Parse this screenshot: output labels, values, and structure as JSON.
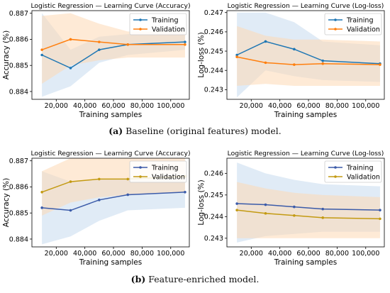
{
  "colors": {
    "baseline_training": "#1f77b4",
    "baseline_validation": "#ff7f0e",
    "enriched_training": "#3b5ba9",
    "enriched_validation": "#c39a12",
    "training_band": "#c6dbef",
    "validation_band": "#fdd8b5",
    "axis": "#000000"
  },
  "captions": [
    {
      "label": "(a)",
      "text": " Baseline (original features) model."
    },
    {
      "label": "(b)",
      "text": " Feature-enriched model."
    }
  ],
  "chart_data": [
    {
      "type": "line",
      "title": "Logistic Regression — Learning Curve (Accuracy)",
      "xlabel": "Training samples",
      "ylabel": "Accuracy (%)",
      "xlim": [
        3000,
        113000
      ],
      "ylim": [
        0.8837,
        0.8871
      ],
      "xticks": [
        20000,
        40000,
        60000,
        80000,
        100000
      ],
      "xtick_labels": [
        "20,000",
        "40,000",
        "60,000",
        "80,000",
        "100,000"
      ],
      "yticks": [
        0.884,
        0.885,
        0.886,
        0.887
      ],
      "ytick_labels": [
        "0.884",
        "0.885",
        "0.886",
        "0.887"
      ],
      "legend": "top-right",
      "grid": false,
      "series": [
        {
          "name": "Training",
          "color": "#1f77b4",
          "band_color": "#c6dbef",
          "x": [
            10000,
            30000,
            50000,
            70000,
            110000
          ],
          "y": [
            0.8854,
            0.8849,
            0.8856,
            0.8858,
            0.8859
          ],
          "lower": [
            0.8838,
            0.8842,
            0.8851,
            0.8854,
            0.8856
          ],
          "upper": [
            0.887,
            0.8856,
            0.8861,
            0.8862,
            0.8862
          ]
        },
        {
          "name": "Validation",
          "color": "#ff7f0e",
          "band_color": "#fdd8b5",
          "x": [
            10000,
            30000,
            50000,
            70000,
            110000
          ],
          "y": [
            0.8856,
            0.886,
            0.8859,
            0.8858,
            0.8858
          ],
          "lower": [
            0.8843,
            0.885,
            0.8852,
            0.8853,
            0.8853
          ],
          "upper": [
            0.8869,
            0.887,
            0.8866,
            0.8863,
            0.8863
          ]
        }
      ]
    },
    {
      "type": "line",
      "title": "Logistic Regression — Learning Curve (Log-loss)",
      "xlabel": "Training samples",
      "ylabel": "Log-loss (%)",
      "xlim": [
        3000,
        113000
      ],
      "ylim": [
        0.2425,
        0.2471
      ],
      "xticks": [
        20000,
        40000,
        60000,
        80000,
        100000
      ],
      "xtick_labels": [
        "20,000",
        "40,000",
        "60,000",
        "80,000",
        "100,000"
      ],
      "yticks": [
        0.243,
        0.244,
        0.245,
        0.246,
        0.247
      ],
      "ytick_labels": [
        "0.243",
        "0.244",
        "0.245",
        "0.246",
        "0.247"
      ],
      "legend": "top-right",
      "grid": false,
      "series": [
        {
          "name": "Training",
          "color": "#1f77b4",
          "band_color": "#c6dbef",
          "x": [
            10000,
            30000,
            50000,
            70000,
            110000
          ],
          "y": [
            0.2448,
            0.2455,
            0.2451,
            0.2445,
            0.24435
          ],
          "lower": [
            0.2426,
            0.244,
            0.2437,
            0.2435,
            0.2434
          ],
          "upper": [
            0.247,
            0.247,
            0.2465,
            0.2455,
            0.2453
          ]
        },
        {
          "name": "Validation",
          "color": "#ff7f0e",
          "band_color": "#fdd8b5",
          "x": [
            10000,
            30000,
            50000,
            70000,
            110000
          ],
          "y": [
            0.2447,
            0.2444,
            0.2443,
            0.24435,
            0.2443
          ],
          "lower": [
            0.2432,
            0.2433,
            0.2432,
            0.2432,
            0.2432
          ],
          "upper": [
            0.2463,
            0.2458,
            0.2456,
            0.2456,
            0.2455
          ]
        }
      ]
    },
    {
      "type": "line",
      "title": "Logistic Regression — Learning Curve (Accuracy)",
      "xlabel": "Training samples",
      "ylabel": "Accuracy (%)",
      "xlim": [
        3000,
        113000
      ],
      "ylim": [
        0.8837,
        0.8871
      ],
      "xticks": [
        20000,
        40000,
        60000,
        80000,
        100000
      ],
      "xtick_labels": [
        "20,000",
        "40,000",
        "60,000",
        "80,000",
        "100,000"
      ],
      "yticks": [
        0.884,
        0.885,
        0.886,
        0.887
      ],
      "ytick_labels": [
        "0.884",
        "0.885",
        "0.886",
        "0.887"
      ],
      "legend": "top-right",
      "grid": false,
      "series": [
        {
          "name": "Training",
          "color": "#3b5ba9",
          "band_color": "#c6dbef",
          "x": [
            10000,
            30000,
            50000,
            70000,
            110000
          ],
          "y": [
            0.8852,
            0.8851,
            0.8855,
            0.8857,
            0.8858
          ],
          "lower": [
            0.8838,
            0.8841,
            0.8847,
            0.8851,
            0.8852
          ],
          "upper": [
            0.8866,
            0.8862,
            0.8863,
            0.8863,
            0.8864
          ]
        },
        {
          "name": "Validation",
          "color": "#c39a12",
          "band_color": "#fdd8b5",
          "x": [
            10000,
            30000,
            50000,
            70000,
            110000
          ],
          "y": [
            0.8858,
            0.8862,
            0.8863,
            0.8863,
            0.8864
          ],
          "lower": [
            0.8849,
            0.8854,
            0.8856,
            0.8857,
            0.8858
          ],
          "upper": [
            0.8866,
            0.8871,
            0.8871,
            0.8871,
            0.8871
          ]
        }
      ]
    },
    {
      "type": "line",
      "title": "Logistic Regression — Learning Curve (Log-loss)",
      "xlabel": "Training samples",
      "ylabel": "Log-loss (%)",
      "xlim": [
        3000,
        113000
      ],
      "ylim": [
        0.2426,
        0.2467
      ],
      "xticks": [
        20000,
        40000,
        60000,
        80000,
        100000
      ],
      "xtick_labels": [
        "20,000",
        "40,000",
        "60,000",
        "80,000",
        "100,000"
      ],
      "yticks": [
        0.243,
        0.244,
        0.245,
        0.246
      ],
      "ytick_labels": [
        "0.243",
        "0.244",
        "0.245",
        "0.246"
      ],
      "legend": "top-right",
      "grid": false,
      "series": [
        {
          "name": "Training",
          "color": "#3b5ba9",
          "band_color": "#c6dbef",
          "x": [
            10000,
            30000,
            50000,
            70000,
            110000
          ],
          "y": [
            0.2446,
            0.24455,
            0.24445,
            0.24435,
            0.2443
          ],
          "lower": [
            0.2428,
            0.2431,
            0.2432,
            0.2433,
            0.2433
          ],
          "upper": [
            0.2465,
            0.246,
            0.2457,
            0.2455,
            0.2454
          ]
        },
        {
          "name": "Validation",
          "color": "#c39a12",
          "band_color": "#fdd8b5",
          "x": [
            10000,
            30000,
            50000,
            70000,
            110000
          ],
          "y": [
            0.2443,
            0.24415,
            0.24405,
            0.24395,
            0.2439
          ],
          "lower": [
            0.243,
            0.243,
            0.243,
            0.243,
            0.243
          ],
          "upper": [
            0.2456,
            0.2453,
            0.2451,
            0.245,
            0.2449
          ]
        }
      ]
    }
  ]
}
